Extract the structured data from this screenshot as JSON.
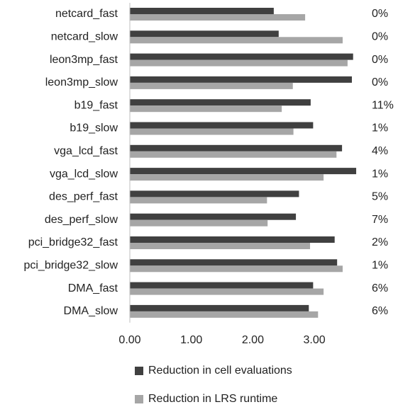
{
  "chart_data": {
    "type": "hbar",
    "categories": [
      "netcard_fast",
      "netcard_slow",
      "leon3mp_fast",
      "leon3mp_slow",
      "b19_fast",
      "b19_slow",
      "vga_lcd_fast",
      "vga_lcd_slow",
      "des_perf_fast",
      "des_perf_slow",
      "pci_bridge32_fast",
      "pci_bridge32_slow",
      "DMA_fast",
      "DMA_slow"
    ],
    "series": [
      {
        "name": "Reduction in cell evaluations",
        "color": "#404040",
        "values": [
          2.34,
          2.42,
          3.63,
          3.61,
          2.94,
          2.98,
          3.45,
          3.68,
          2.75,
          2.7,
          3.33,
          3.37,
          2.98,
          2.91
        ]
      },
      {
        "name": "Reduction in LRS runtime",
        "color": "#a6a6a6",
        "values": [
          2.85,
          3.46,
          3.54,
          2.65,
          2.47,
          2.66,
          3.36,
          3.15,
          2.23,
          2.24,
          2.93,
          3.46,
          3.15,
          3.06
        ]
      }
    ],
    "annotations": [
      "0%",
      "0%",
      "0%",
      "0%",
      "11%",
      "1%",
      "4%",
      "1%",
      "5%",
      "7%",
      "2%",
      "1%",
      "6%",
      "6%"
    ],
    "xlim": [
      0,
      4
    ],
    "xticks": [
      {
        "value": 0,
        "label": "0.00"
      },
      {
        "value": 1,
        "label": "1.00"
      },
      {
        "value": 2,
        "label": "2.00"
      },
      {
        "value": 3,
        "label": "3.00"
      }
    ],
    "legend": "bottom"
  }
}
